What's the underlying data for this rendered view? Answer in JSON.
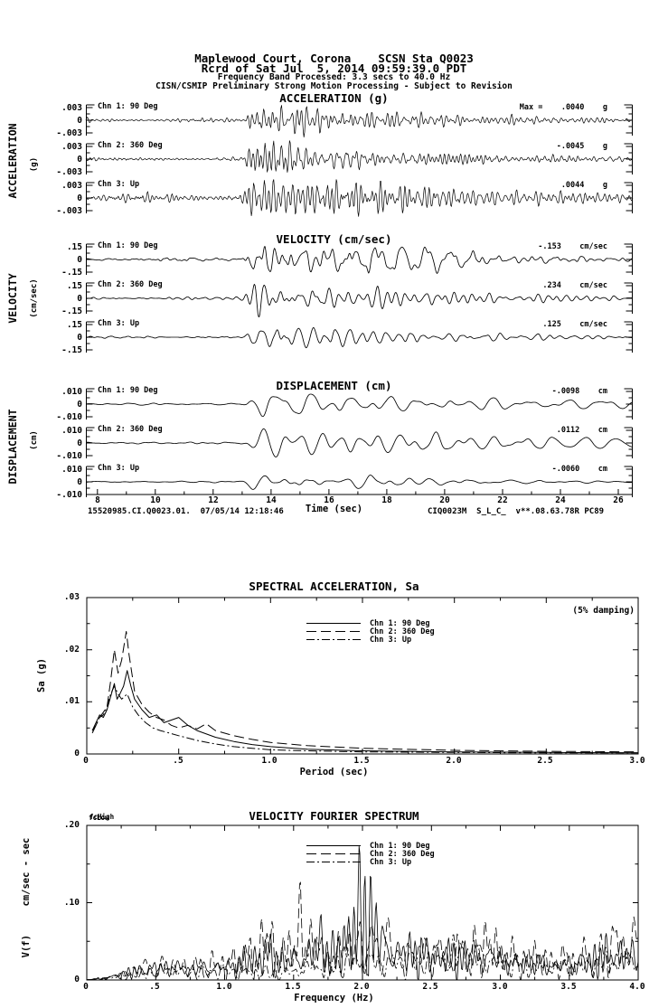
{
  "page": {
    "background": "#ffffff",
    "ink": "#000000"
  },
  "header": {
    "line1": "Maplewood Court, Corona    SCSN Sta Q0023",
    "line2": "Rcrd of Sat Jul  5, 2014 09:59:39.0 PDT",
    "line3": "Frequency Band Processed: 3.3 secs to 40.0 Hz",
    "line4": "CISN/CSMIP Preliminary Strong Motion Processing - Subject to Revision"
  },
  "footer": {
    "left": "15520985.CI.Q0023.01.  07/05/14 12:18:46",
    "right": "CIQ0023M  S_L_C_  v**.08.63.78R PC89"
  },
  "timeseries_common": {
    "time_range": [
      7.6,
      26.5
    ],
    "envelope": {
      "onset": 12.9,
      "ramp_end": 13.5,
      "hold_end": 15.0
    }
  },
  "chart_data": [
    {
      "id": "acceleration",
      "type": "line",
      "kind": "timeseries",
      "title": "ACCELERATION (g)",
      "side_label": "ACCELERATION",
      "side_unit": "(g)",
      "ytick_labels": [
        ".003",
        "0",
        "-.003"
      ],
      "ytick_value": 0.003,
      "band": [
        2.0,
        7.5
      ],
      "quiet": 0.13,
      "coda": 0.16,
      "channels": [
        {
          "label": "Chn 1: 90 Deg",
          "max_prefix": "Max =",
          "max_value": ".0040",
          "unit": "g",
          "peak": 0.004,
          "seed": 11
        },
        {
          "label": "Chn 2: 360 Deg",
          "max_value": "-.0045",
          "unit": "g",
          "peak": 0.0045,
          "seed": 22
        },
        {
          "label": "Chn 3: Up",
          "max_value": ".0044",
          "unit": "g",
          "peak": 0.0044,
          "seed": 33,
          "quiet": 0.16
        }
      ]
    },
    {
      "id": "velocity",
      "type": "line",
      "kind": "timeseries",
      "title": "VELOCITY (cm/sec)",
      "side_label": "VELOCITY",
      "side_unit": "(cm/sec)",
      "ytick_labels": [
        ".15",
        "0",
        "-.15"
      ],
      "ytick_value": 0.15,
      "band": [
        1.0,
        3.5
      ],
      "quiet": 0.09,
      "coda": 0.15,
      "channels": [
        {
          "label": "Chn 1: 90 Deg",
          "max_value": "-.153",
          "unit": "cm/sec",
          "peak": 0.153,
          "seed": 44
        },
        {
          "label": "Chn 2: 360 Deg",
          "max_value": ".234",
          "unit": "cm/sec",
          "peak": 0.234,
          "seed": 55
        },
        {
          "label": "Chn 3: Up",
          "max_value": ".125",
          "unit": "cm/sec",
          "peak": 0.125,
          "seed": 66,
          "coda": 0.12
        }
      ]
    },
    {
      "id": "displacement",
      "type": "line",
      "kind": "timeseries",
      "title": "DISPLACEMENT (cm)",
      "side_label": "DISPLACEMENT",
      "side_unit": "(cm)",
      "ytick_labels": [
        ".010",
        "0",
        "-.010"
      ],
      "ytick_value": 0.01,
      "band": [
        0.6,
        1.6
      ],
      "quiet": 0.09,
      "coda": 0.22,
      "channels": [
        {
          "label": "Chn 1: 90 Deg",
          "max_value": "-.0098",
          "unit": "cm",
          "peak": 0.0098,
          "seed": 77
        },
        {
          "label": "Chn 2: 360 Deg",
          "max_value": ".0112",
          "unit": "cm",
          "peak": 0.0112,
          "seed": 88
        },
        {
          "label": "Chn 3: Up",
          "max_value": "-.0060",
          "unit": "cm",
          "peak": 0.006,
          "seed": 99,
          "coda": 0.12
        }
      ],
      "time_axis": {
        "label": "Time (sec)",
        "tick_labels": [
          "8",
          "10",
          "12",
          "14",
          "16",
          "18",
          "20",
          "22",
          "24",
          "26"
        ],
        "tick_values": [
          8,
          10,
          12,
          14,
          16,
          18,
          20,
          22,
          24,
          26
        ],
        "minor_values": [
          9,
          11,
          13,
          15,
          17,
          19,
          21,
          23,
          25
        ]
      }
    },
    {
      "id": "spectral_acceleration",
      "type": "line",
      "title": "SPECTRAL ACCELERATION, Sa",
      "xlabel": "Period (sec)",
      "ylabel": "Sa (g)",
      "annotation": "(5% damping)",
      "xlim": [
        0,
        3.0
      ],
      "ylim": [
        0,
        0.03
      ],
      "xtick_labels": [
        "0",
        ".5",
        "1.0",
        "1.5",
        "2.0",
        "2.5",
        "3.0"
      ],
      "xtick_values": [
        0,
        0.5,
        1.0,
        1.5,
        2.0,
        2.5,
        3.0
      ],
      "xminor_step": 0.25,
      "ytick_labels": [
        ".03",
        ".02",
        ".01",
        "0"
      ],
      "ytick_values": [
        0.03,
        0.02,
        0.01,
        0
      ],
      "yminor_step": 0.005,
      "legend": [
        {
          "label": "Chn 1: 90 Deg",
          "style": "solid"
        },
        {
          "label": "Chn 2: 360 Deg",
          "style": "dash"
        },
        {
          "label": "Chn 3: Up",
          "style": "dashdot"
        }
      ],
      "series": [
        {
          "name": "Chn 1: 90 Deg",
          "style": "solid",
          "points": [
            [
              0.03,
              0.0045
            ],
            [
              0.05,
              0.006
            ],
            [
              0.07,
              0.0075
            ],
            [
              0.09,
              0.007
            ],
            [
              0.11,
              0.0085
            ],
            [
              0.13,
              0.011
            ],
            [
              0.15,
              0.0135
            ],
            [
              0.165,
              0.0105
            ],
            [
              0.18,
              0.0115
            ],
            [
              0.2,
              0.013
            ],
            [
              0.22,
              0.016
            ],
            [
              0.24,
              0.013
            ],
            [
              0.26,
              0.0105
            ],
            [
              0.3,
              0.0085
            ],
            [
              0.34,
              0.007
            ],
            [
              0.38,
              0.0075
            ],
            [
              0.42,
              0.006
            ],
            [
              0.46,
              0.0065
            ],
            [
              0.5,
              0.007
            ],
            [
              0.55,
              0.0055
            ],
            [
              0.6,
              0.0045
            ],
            [
              0.7,
              0.0032
            ],
            [
              0.8,
              0.0024
            ],
            [
              0.9,
              0.0018
            ],
            [
              1.0,
              0.0014
            ],
            [
              1.2,
              0.0009
            ],
            [
              1.5,
              0.0006
            ],
            [
              2.0,
              0.0004
            ],
            [
              2.5,
              0.0003
            ],
            [
              3.0,
              0.0002
            ]
          ]
        },
        {
          "name": "Chn 2: 360 Deg",
          "style": "dash",
          "points": [
            [
              0.03,
              0.0045
            ],
            [
              0.05,
              0.0055
            ],
            [
              0.07,
              0.007
            ],
            [
              0.09,
              0.008
            ],
            [
              0.11,
              0.009
            ],
            [
              0.13,
              0.014
            ],
            [
              0.15,
              0.02
            ],
            [
              0.17,
              0.0155
            ],
            [
              0.19,
              0.018
            ],
            [
              0.215,
              0.0235
            ],
            [
              0.23,
              0.019
            ],
            [
              0.26,
              0.012
            ],
            [
              0.3,
              0.0095
            ],
            [
              0.34,
              0.008
            ],
            [
              0.38,
              0.007
            ],
            [
              0.42,
              0.0065
            ],
            [
              0.46,
              0.0055
            ],
            [
              0.5,
              0.005
            ],
            [
              0.55,
              0.0055
            ],
            [
              0.6,
              0.0048
            ],
            [
              0.65,
              0.0058
            ],
            [
              0.7,
              0.0045
            ],
            [
              0.8,
              0.0035
            ],
            [
              0.9,
              0.0028
            ],
            [
              1.0,
              0.0022
            ],
            [
              1.2,
              0.0016
            ],
            [
              1.5,
              0.0011
            ],
            [
              2.0,
              0.0007
            ],
            [
              2.5,
              0.0005
            ],
            [
              3.0,
              0.0004
            ]
          ]
        },
        {
          "name": "Chn 3: Up",
          "style": "dashdot",
          "points": [
            [
              0.03,
              0.004
            ],
            [
              0.05,
              0.0055
            ],
            [
              0.07,
              0.007
            ],
            [
              0.09,
              0.0075
            ],
            [
              0.11,
              0.009
            ],
            [
              0.13,
              0.0115
            ],
            [
              0.15,
              0.013
            ],
            [
              0.17,
              0.0115
            ],
            [
              0.19,
              0.0105
            ],
            [
              0.22,
              0.0115
            ],
            [
              0.25,
              0.009
            ],
            [
              0.28,
              0.0075
            ],
            [
              0.32,
              0.006
            ],
            [
              0.36,
              0.005
            ],
            [
              0.4,
              0.0045
            ],
            [
              0.45,
              0.004
            ],
            [
              0.5,
              0.0035
            ],
            [
              0.6,
              0.0026
            ],
            [
              0.7,
              0.0019
            ],
            [
              0.8,
              0.0014
            ],
            [
              0.9,
              0.0011
            ],
            [
              1.0,
              0.0008
            ],
            [
              1.2,
              0.0006
            ],
            [
              1.5,
              0.0004
            ],
            [
              2.0,
              0.0003
            ],
            [
              2.5,
              0.0002
            ],
            [
              3.0,
              0.0002
            ]
          ]
        }
      ]
    },
    {
      "id": "velocity_fourier_spectrum",
      "type": "line",
      "title": "VELOCITY FOURIER SPECTRUM",
      "xlabel": "Frequency (Hz)",
      "ylabel": "V(f)     cm/sec - sec",
      "corner_labels": [
        "fcLow",
        "fcHigh"
      ],
      "xlim": [
        0,
        4.0
      ],
      "ylim": [
        0,
        0.2
      ],
      "xtick_labels": [
        "0",
        ".5",
        "1.0",
        "1.5",
        "2.0",
        "2.5",
        "3.0",
        "3.5",
        "4.0"
      ],
      "xtick_values": [
        0,
        0.5,
        1.0,
        1.5,
        2.0,
        2.5,
        3.0,
        3.5,
        4.0
      ],
      "xminor_step": 0.25,
      "ytick_labels": [
        ".20",
        ".10",
        "0"
      ],
      "ytick_values": [
        0.2,
        0.1,
        0
      ],
      "yminor_step": 0.05,
      "legend": [
        {
          "label": "Chn 1: 90 Deg",
          "style": "solid"
        },
        {
          "label": "Chn 2: 360 Deg",
          "style": "dash"
        },
        {
          "label": "Chn 3: Up",
          "style": "dashdot"
        }
      ],
      "series": [
        {
          "name": "Chn 1: 90 Deg",
          "style": "solid",
          "seed": 7,
          "jitter": true,
          "points": [
            [
              0,
              0
            ],
            [
              0.15,
              0.005
            ],
            [
              0.3,
              0.018
            ],
            [
              0.45,
              0.028
            ],
            [
              0.6,
              0.032
            ],
            [
              0.75,
              0.028
            ],
            [
              0.9,
              0.03
            ],
            [
              1.05,
              0.035
            ],
            [
              1.2,
              0.05
            ],
            [
              1.3,
              0.065
            ],
            [
              1.45,
              0.045
            ],
            [
              1.6,
              0.06
            ],
            [
              1.7,
              0.095
            ],
            [
              1.8,
              0.055
            ],
            [
              1.9,
              0.115
            ],
            [
              2.0,
              0.155
            ],
            [
              2.1,
              0.125
            ],
            [
              2.2,
              0.065
            ],
            [
              2.35,
              0.07
            ],
            [
              2.5,
              0.06
            ],
            [
              2.65,
              0.055
            ],
            [
              2.8,
              0.055
            ],
            [
              2.95,
              0.06
            ],
            [
              3.1,
              0.04
            ],
            [
              3.25,
              0.045
            ],
            [
              3.4,
              0.035
            ],
            [
              3.55,
              0.045
            ],
            [
              3.7,
              0.05
            ],
            [
              3.85,
              0.07
            ],
            [
              4.0,
              0.055
            ]
          ]
        },
        {
          "name": "Chn 2: 360 Deg",
          "style": "dash",
          "seed": 8,
          "jitter": true,
          "points": [
            [
              0,
              0
            ],
            [
              0.15,
              0.006
            ],
            [
              0.3,
              0.02
            ],
            [
              0.45,
              0.03
            ],
            [
              0.6,
              0.035
            ],
            [
              0.75,
              0.032
            ],
            [
              0.9,
              0.035
            ],
            [
              1.05,
              0.045
            ],
            [
              1.2,
              0.06
            ],
            [
              1.3,
              0.09
            ],
            [
              1.45,
              0.06
            ],
            [
              1.55,
              0.125
            ],
            [
              1.65,
              0.08
            ],
            [
              1.8,
              0.055
            ],
            [
              1.9,
              0.1
            ],
            [
              2.0,
              0.085
            ],
            [
              2.1,
              0.095
            ],
            [
              2.2,
              0.075
            ],
            [
              2.35,
              0.06
            ],
            [
              2.5,
              0.07
            ],
            [
              2.65,
              0.06
            ],
            [
              2.8,
              0.08
            ],
            [
              2.95,
              0.085
            ],
            [
              3.1,
              0.05
            ],
            [
              3.25,
              0.055
            ],
            [
              3.4,
              0.045
            ],
            [
              3.55,
              0.05
            ],
            [
              3.7,
              0.055
            ],
            [
              3.85,
              0.09
            ],
            [
              4.0,
              0.095
            ]
          ]
        },
        {
          "name": "Chn 3: Up",
          "style": "dashdot",
          "seed": 9,
          "jitter": true,
          "points": [
            [
              0,
              0
            ],
            [
              0.2,
              0.008
            ],
            [
              0.4,
              0.018
            ],
            [
              0.6,
              0.022
            ],
            [
              0.8,
              0.02
            ],
            [
              1.0,
              0.024
            ],
            [
              1.2,
              0.02
            ],
            [
              1.4,
              0.016
            ],
            [
              1.6,
              0.028
            ],
            [
              1.8,
              0.038
            ],
            [
              2.0,
              0.048
            ],
            [
              2.2,
              0.042
            ],
            [
              2.4,
              0.05
            ],
            [
              2.6,
              0.06
            ],
            [
              2.75,
              0.07
            ],
            [
              2.9,
              0.055
            ],
            [
              3.1,
              0.04
            ],
            [
              3.3,
              0.032
            ],
            [
              3.5,
              0.035
            ],
            [
              3.7,
              0.04
            ],
            [
              3.9,
              0.05
            ],
            [
              4.0,
              0.048
            ]
          ]
        }
      ]
    }
  ]
}
